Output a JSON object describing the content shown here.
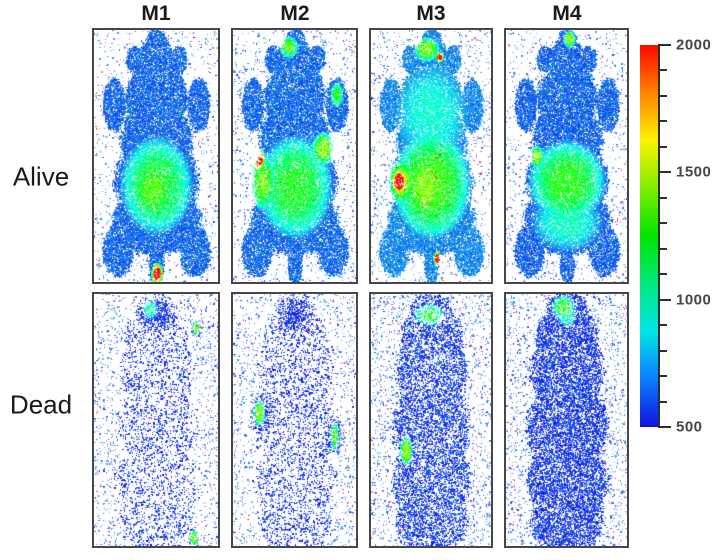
{
  "figure": {
    "row_labels": [
      "Alive",
      "Dead"
    ],
    "col_labels": [
      "M1",
      "M2",
      "M3",
      "M4"
    ],
    "panel_border_color": "#474747",
    "background_color": "#ffffff"
  },
  "colorbar": {
    "min": 500,
    "max": 2000,
    "minor_step": 100,
    "major_ticks": [
      {
        "value": 2000,
        "label": "2000"
      },
      {
        "value": 1500,
        "label": "1500"
      },
      {
        "value": 1000,
        "label": "1000"
      },
      {
        "value": 500,
        "label": "500"
      }
    ],
    "gradient": [
      "#fa0800",
      "#ff8300",
      "#fdf200",
      "#7eef00",
      "#00e400",
      "#00e87e",
      "#00e6e6",
      "#0b7dff",
      "#1212dd"
    ]
  },
  "shapes": {
    "alive": [
      [
        0.5,
        0.045,
        0.085,
        0.05
      ],
      [
        0.5,
        0.12,
        0.145,
        0.09
      ],
      [
        0.32,
        0.115,
        0.065,
        0.055
      ],
      [
        0.68,
        0.115,
        0.065,
        0.055
      ],
      [
        0.5,
        0.27,
        0.25,
        0.14
      ],
      [
        0.16,
        0.295,
        0.09,
        0.105
      ],
      [
        0.84,
        0.295,
        0.09,
        0.105
      ],
      [
        0.5,
        0.44,
        0.285,
        0.165
      ],
      [
        0.5,
        0.6,
        0.335,
        0.165
      ],
      [
        0.5,
        0.755,
        0.355,
        0.135
      ],
      [
        0.19,
        0.875,
        0.125,
        0.1
      ],
      [
        0.81,
        0.875,
        0.125,
        0.1
      ],
      [
        0.5,
        0.93,
        0.06,
        0.08
      ]
    ],
    "dead": [
      [
        0.5,
        0.075,
        0.18,
        0.085
      ],
      [
        0.33,
        0.17,
        0.09,
        0.09
      ],
      [
        0.67,
        0.17,
        0.09,
        0.09
      ],
      [
        0.5,
        0.3,
        0.3,
        0.17
      ],
      [
        0.5,
        0.52,
        0.33,
        0.19
      ],
      [
        0.5,
        0.74,
        0.33,
        0.17
      ],
      [
        0.5,
        0.9,
        0.3,
        0.13
      ]
    ]
  },
  "panels": [
    {
      "id": "alive-m1",
      "shape": "alive",
      "seed": 101,
      "density": 0.85,
      "bg": 0.045,
      "base": 640,
      "fleck": 0.012,
      "speck": 0.004,
      "regions": [
        [
          0.5,
          0.615,
          0.3,
          0.2,
          1260,
          0
        ],
        [
          0.47,
          0.63,
          0.17,
          0.12,
          1400,
          0
        ],
        [
          0.505,
          0.965,
          0.05,
          0.045,
          2080,
          1
        ]
      ],
      "dregions": []
    },
    {
      "id": "alive-m2",
      "shape": "alive",
      "seed": 202,
      "density": 0.85,
      "bg": 0.05,
      "base": 645,
      "fleck": 0.012,
      "speck": 0.004,
      "regions": [
        [
          0.5,
          0.62,
          0.31,
          0.21,
          1290,
          0
        ],
        [
          0.24,
          0.6,
          0.11,
          0.12,
          1450,
          0
        ],
        [
          0.205,
          0.51,
          0.055,
          0.045,
          2080,
          1
        ],
        [
          0.73,
          0.47,
          0.1,
          0.07,
          1500,
          0
        ],
        [
          0.45,
          0.065,
          0.08,
          0.045,
          1430,
          0
        ],
        [
          0.84,
          0.255,
          0.055,
          0.05,
          1320,
          0
        ]
      ],
      "dregions": []
    },
    {
      "id": "alive-m3",
      "shape": "alive",
      "seed": 303,
      "density": 0.88,
      "bg": 0.05,
      "base": 690,
      "fleck": 0.015,
      "speck": 0.012,
      "regions": [
        [
          0.5,
          0.33,
          0.3,
          0.2,
          930,
          0
        ],
        [
          0.5,
          0.61,
          0.33,
          0.22,
          1380,
          0
        ],
        [
          0.45,
          0.62,
          0.18,
          0.14,
          1480,
          0
        ],
        [
          0.25,
          0.6,
          0.12,
          0.09,
          1600,
          0
        ],
        [
          0.23,
          0.6,
          0.065,
          0.055,
          2080,
          1
        ],
        [
          0.55,
          0.905,
          0.035,
          0.03,
          2080,
          1
        ],
        [
          0.46,
          0.075,
          0.11,
          0.05,
          1500,
          0
        ],
        [
          0.57,
          0.105,
          0.035,
          0.022,
          2000,
          1
        ]
      ],
      "dregions": []
    },
    {
      "id": "alive-m4",
      "shape": "alive",
      "seed": 404,
      "density": 0.84,
      "bg": 0.045,
      "base": 635,
      "fleck": 0.012,
      "speck": 0.005,
      "regions": [
        [
          0.5,
          0.6,
          0.33,
          0.17,
          1330,
          0
        ],
        [
          0.5,
          0.76,
          0.3,
          0.12,
          980,
          0
        ],
        [
          0.25,
          0.5,
          0.06,
          0.045,
          1550,
          0
        ],
        [
          0.52,
          0.035,
          0.055,
          0.035,
          1520,
          0
        ]
      ],
      "dregions": []
    },
    {
      "id": "dead-m1",
      "shape": "dead",
      "seed": 505,
      "density": 0.16,
      "bg": 0.07,
      "base": 560,
      "fleck": 0.004,
      "speck": 0,
      "regions": [
        [
          0.45,
          0.06,
          0.07,
          0.04,
          1060,
          0
        ],
        [
          0.82,
          0.135,
          0.035,
          0.03,
          1380,
          1
        ],
        [
          0.8,
          0.965,
          0.04,
          0.03,
          1380,
          1
        ]
      ],
      "dregions": [
        [
          0.5,
          0.08,
          0.19,
          0.085,
          0.6
        ],
        [
          0.82,
          0.135,
          0.05,
          0.04,
          0.8
        ],
        [
          0.8,
          0.965,
          0.05,
          0.04,
          0.8
        ]
      ]
    },
    {
      "id": "dead-m2",
      "shape": "dead",
      "seed": 606,
      "density": 0.18,
      "bg": 0.07,
      "base": 560,
      "fleck": 0.004,
      "speck": 0,
      "regions": [
        [
          0.21,
          0.47,
          0.05,
          0.055,
          1380,
          1
        ],
        [
          0.82,
          0.56,
          0.035,
          0.055,
          1320,
          1
        ]
      ],
      "dregions": [
        [
          0.5,
          0.08,
          0.18,
          0.085,
          0.62
        ],
        [
          0.22,
          0.47,
          0.105,
          0.1,
          0.65
        ],
        [
          0.82,
          0.56,
          0.09,
          0.085,
          0.62
        ]
      ]
    },
    {
      "id": "dead-m3",
      "shape": "dead",
      "seed": 707,
      "density": 0.4,
      "bg": 0.08,
      "base": 575,
      "fleck": 0.006,
      "speck": 0,
      "regions": [
        [
          0.48,
          0.08,
          0.13,
          0.045,
          1300,
          0
        ],
        [
          0.29,
          0.62,
          0.055,
          0.06,
          1440,
          1
        ]
      ],
      "dregions": [
        [
          0.29,
          0.62,
          0.07,
          0.075,
          0.8
        ]
      ]
    },
    {
      "id": "dead-m4",
      "shape": "dead",
      "seed": 808,
      "density": 0.52,
      "bg": 0.08,
      "base": 570,
      "fleck": 0.005,
      "speck": 0,
      "regions": [
        [
          0.47,
          0.05,
          0.1,
          0.05,
          1330,
          0
        ],
        [
          0.5,
          0.09,
          0.08,
          0.04,
          1000,
          0
        ]
      ],
      "dregions": []
    }
  ]
}
